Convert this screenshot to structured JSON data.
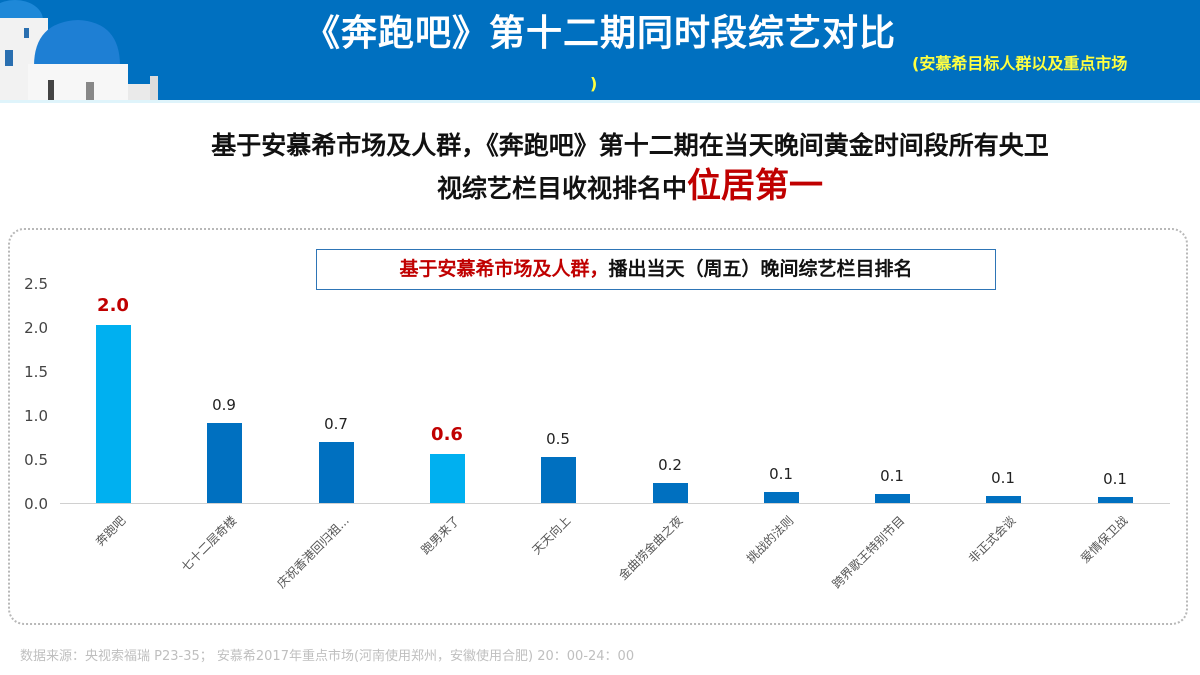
{
  "header": {
    "title": "《奔跑吧》第十二期同时段综艺对比",
    "subtitle_line1": "(安慕希目标人群以及重点市场",
    "subtitle_line2": ")",
    "background_color": "#0070c0",
    "subtitle_color": "#ffff40"
  },
  "headline": {
    "line1": "基于安慕希市场及人群，《奔跑吧》第十二期在当天晚间黄金时间段所有央卫",
    "line2_prefix": "视综艺栏目收视排名中",
    "line2_highlight": "位居第一",
    "highlight_color": "#c00000"
  },
  "chart_title": {
    "red_part": "基于安慕希市场及人群，",
    "black_part": "播出当天（周五）晚间综艺栏目排名"
  },
  "footer": {
    "source": "数据来源：央视索福瑞 P23-35；  安慕希2017年重点市场(河南使用郑州，安徽使用合肥)  20：00-24：00"
  },
  "chart_data": {
    "type": "bar",
    "title": "基于安慕希市场及人群，播出当天（周五）晚间综艺栏目排名",
    "xlabel": "",
    "ylabel": "",
    "ylim": [
      0,
      2.5
    ],
    "yticks": [
      "0.0",
      "0.5",
      "1.0",
      "1.5",
      "2.0",
      "2.5"
    ],
    "grid": false,
    "legend": null,
    "categories": [
      "奔跑吧",
      "七十二层奇楼",
      "庆祝香港回归祖...",
      "跑男来了",
      "天天向上",
      "金曲捞金曲之夜",
      "挑战的法则",
      "跨界歌王特别节目",
      "非正式会谈",
      "爱情保卫战"
    ],
    "values": [
      2.03,
      0.91,
      0.7,
      0.56,
      0.53,
      0.23,
      0.13,
      0.1,
      0.08,
      0.07
    ],
    "data_labels": [
      "2.0",
      "0.9",
      "0.7",
      "0.6",
      "0.5",
      "0.2",
      "0.1",
      "0.1",
      "0.1",
      "0.1"
    ],
    "highlighted": [
      true,
      false,
      false,
      true,
      false,
      false,
      false,
      false,
      false,
      false
    ],
    "colors": {
      "highlight_bar": "#00b0f0",
      "normal_bar": "#0070c0",
      "highlight_label": "#c00000"
    }
  }
}
